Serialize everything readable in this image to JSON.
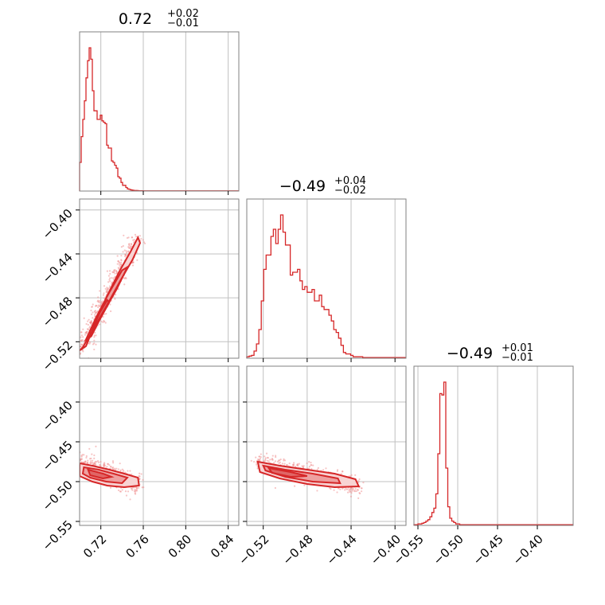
{
  "chart_data": {
    "type": "corner",
    "color": "#d62728",
    "fill_colors": [
      "#f8d3d3",
      "#eea0a0",
      "#e06666"
    ],
    "grid": true,
    "parameters": [
      {
        "value": "0.72",
        "plus": "+0.02",
        "minus": "−0.01",
        "range": [
          0.7,
          0.85
        ],
        "ticks": [
          0.72,
          0.76,
          0.8,
          0.84
        ],
        "tick_labels": [
          "0.72",
          "0.76",
          "0.80",
          "0.84"
        ],
        "hist": {
          "edges_start": 0.7,
          "bin_width": 0.0015,
          "counts": [
            0.2,
            0.38,
            0.5,
            0.63,
            0.79,
            0.91,
            1.0,
            0.92,
            0.7,
            0.56,
            0.56,
            0.5,
            0.5,
            0.53,
            0.49,
            0.48,
            0.47,
            0.32,
            0.3,
            0.3,
            0.21,
            0.2,
            0.18,
            0.16,
            0.1,
            0.09,
            0.06,
            0.04,
            0.04,
            0.025,
            0.015,
            0.012,
            0.008,
            0.006,
            0.004,
            0.004,
            0.003,
            0.002,
            0.002,
            0.002,
            0.001,
            0.001,
            0.001,
            0.001,
            0.001,
            0.001,
            0.001,
            0.001,
            0.001,
            0.001,
            0.001,
            0.001,
            0.001,
            0.001,
            0.001,
            0.001,
            0.001,
            0.001,
            0.001,
            0.001,
            0.001,
            0.001,
            0.001,
            0.001,
            0.001,
            0.001,
            0.001,
            0.001,
            0.001,
            0.001,
            0.001,
            0.001,
            0.001,
            0.001,
            0.001,
            0.001,
            0.001,
            0.001,
            0.001,
            0.001,
            0.001,
            0.001,
            0.001,
            0.001,
            0.001,
            0.001,
            0.001,
            0.001,
            0.001,
            0.001,
            0.001,
            0.001,
            0.001,
            0.001,
            0.001,
            0.001,
            0.001,
            0.001,
            0.001,
            0.001
          ]
        }
      },
      {
        "value": "−0.49",
        "plus": "+0.04",
        "minus": "−0.02",
        "range": [
          -0.535,
          -0.39
        ],
        "ticks": [
          -0.52,
          -0.48,
          -0.44,
          -0.4
        ],
        "tick_labels": [
          "−0.52",
          "−0.48",
          "−0.44",
          "−0.40"
        ],
        "hist": {
          "edges_start": -0.535,
          "bin_width": 0.0022,
          "counts": [
            0.01,
            0.015,
            0.02,
            0.05,
            0.1,
            0.2,
            0.4,
            0.62,
            0.72,
            0.72,
            0.85,
            0.9,
            0.8,
            0.9,
            1.0,
            0.88,
            0.79,
            0.79,
            0.58,
            0.6,
            0.6,
            0.62,
            0.54,
            0.48,
            0.5,
            0.46,
            0.46,
            0.48,
            0.4,
            0.4,
            0.44,
            0.36,
            0.34,
            0.34,
            0.3,
            0.26,
            0.2,
            0.18,
            0.14,
            0.09,
            0.04,
            0.03,
            0.03,
            0.02,
            0.01,
            0.01,
            0.01,
            0.01,
            0.005,
            0.005,
            0.005,
            0.005,
            0.005,
            0.005,
            0.005,
            0.005,
            0.005,
            0.005,
            0.005,
            0.005,
            0.005,
            0.005,
            0.005,
            0.005,
            0.005,
            0.005
          ]
        }
      },
      {
        "value": "−0.49",
        "plus": "+0.01",
        "minus": "−0.01",
        "range": [
          -0.555,
          -0.355
        ],
        "ticks": [
          -0.55,
          -0.5,
          -0.45,
          -0.4
        ],
        "tick_labels": [
          "−0.55",
          "−0.50",
          "−0.45",
          "−0.40"
        ],
        "hist": {
          "edges_start": -0.555,
          "bin_width": 0.0025,
          "counts": [
            0.005,
            0.005,
            0.01,
            0.01,
            0.015,
            0.02,
            0.03,
            0.04,
            0.06,
            0.09,
            0.12,
            0.22,
            0.5,
            0.92,
            0.91,
            1.0,
            0.4,
            0.13,
            0.05,
            0.03,
            0.02,
            0.01,
            0.01,
            0.005,
            0.005,
            0.005,
            0.005,
            0.005,
            0.005,
            0.005,
            0.005,
            0.005,
            0.005,
            0.005,
            0.005,
            0.005,
            0.005,
            0.005,
            0.005,
            0.005,
            0.005,
            0.005,
            0.005,
            0.005,
            0.005,
            0.005,
            0.005,
            0.005,
            0.005,
            0.005,
            0.005,
            0.005,
            0.005,
            0.005,
            0.005,
            0.005,
            0.005,
            0.005,
            0.005,
            0.005,
            0.005,
            0.005,
            0.005,
            0.005,
            0.005,
            0.005,
            0.005,
            0.005,
            0.005,
            0.005,
            0.005,
            0.005,
            0.005,
            0.005,
            0.005,
            0.005,
            0.005,
            0.005,
            0.005,
            0.005
          ]
        }
      }
    ],
    "pairs": [
      {
        "row": 1,
        "col": 0,
        "y_ticks": [
          -0.4,
          -0.44,
          -0.48,
          -0.52
        ],
        "y_tick_labels": [
          "−0.40",
          "−0.44",
          "−0.48",
          "−0.52"
        ],
        "outer_contour": [
          [
            0.7,
            -0.528
          ],
          [
            0.706,
            -0.524
          ],
          [
            0.716,
            -0.5
          ],
          [
            0.726,
            -0.478
          ],
          [
            0.738,
            -0.455
          ],
          [
            0.748,
            -0.438
          ],
          [
            0.755,
            -0.425
          ],
          [
            0.757,
            -0.43
          ],
          [
            0.75,
            -0.445
          ],
          [
            0.738,
            -0.465
          ],
          [
            0.725,
            -0.488
          ],
          [
            0.712,
            -0.51
          ],
          [
            0.703,
            -0.525
          ]
        ],
        "inner_contour": [
          [
            0.706,
            -0.518
          ],
          [
            0.716,
            -0.497
          ],
          [
            0.728,
            -0.475
          ],
          [
            0.74,
            -0.455
          ],
          [
            0.745,
            -0.452
          ],
          [
            0.735,
            -0.472
          ],
          [
            0.722,
            -0.494
          ],
          [
            0.711,
            -0.515
          ]
        ],
        "core_contour": [
          [
            0.709,
            -0.512
          ],
          [
            0.718,
            -0.495
          ],
          [
            0.726,
            -0.482
          ],
          [
            0.728,
            -0.484
          ],
          [
            0.72,
            -0.498
          ],
          [
            0.712,
            -0.512
          ]
        ]
      },
      {
        "row": 2,
        "col": 0,
        "y_ticks": [
          -0.4,
          -0.45,
          -0.5,
          -0.55
        ],
        "y_tick_labels": [
          "−0.40",
          "−0.45",
          "−0.50",
          "−0.55"
        ],
        "outer_contour": [
          [
            0.7,
            -0.477
          ],
          [
            0.712,
            -0.48
          ],
          [
            0.728,
            -0.485
          ],
          [
            0.742,
            -0.49
          ],
          [
            0.755,
            -0.495
          ],
          [
            0.756,
            -0.505
          ],
          [
            0.742,
            -0.507
          ],
          [
            0.726,
            -0.505
          ],
          [
            0.712,
            -0.5
          ],
          [
            0.7,
            -0.493
          ]
        ],
        "inner_contour": [
          [
            0.704,
            -0.482
          ],
          [
            0.718,
            -0.485
          ],
          [
            0.732,
            -0.49
          ],
          [
            0.745,
            -0.495
          ],
          [
            0.74,
            -0.502
          ],
          [
            0.725,
            -0.5
          ],
          [
            0.71,
            -0.495
          ],
          [
            0.703,
            -0.49
          ]
        ],
        "core_contour": [
          [
            0.708,
            -0.485
          ],
          [
            0.722,
            -0.49
          ],
          [
            0.73,
            -0.494
          ],
          [
            0.722,
            -0.496
          ],
          [
            0.71,
            -0.492
          ]
        ]
      },
      {
        "row": 2,
        "col": 1,
        "y_ticks": [
          -0.4,
          -0.45,
          -0.5,
          -0.55
        ],
        "y_tick_labels": [
          "−0.40",
          "−0.45",
          "−0.50",
          "−0.55"
        ],
        "outer_contour": [
          [
            -0.525,
            -0.475
          ],
          [
            -0.505,
            -0.48
          ],
          [
            -0.48,
            -0.485
          ],
          [
            -0.455,
            -0.49
          ],
          [
            -0.436,
            -0.497
          ],
          [
            -0.433,
            -0.506
          ],
          [
            -0.455,
            -0.507
          ],
          [
            -0.48,
            -0.503
          ],
          [
            -0.505,
            -0.496
          ],
          [
            -0.523,
            -0.488
          ]
        ],
        "inner_contour": [
          [
            -0.52,
            -0.48
          ],
          [
            -0.5,
            -0.485
          ],
          [
            -0.475,
            -0.49
          ],
          [
            -0.452,
            -0.496
          ],
          [
            -0.45,
            -0.502
          ],
          [
            -0.475,
            -0.5
          ],
          [
            -0.5,
            -0.494
          ],
          [
            -0.518,
            -0.486
          ]
        ],
        "core_contour": [
          [
            -0.515,
            -0.483
          ],
          [
            -0.495,
            -0.488
          ],
          [
            -0.48,
            -0.493
          ],
          [
            -0.495,
            -0.494
          ],
          [
            -0.512,
            -0.489
          ]
        ]
      }
    ]
  }
}
